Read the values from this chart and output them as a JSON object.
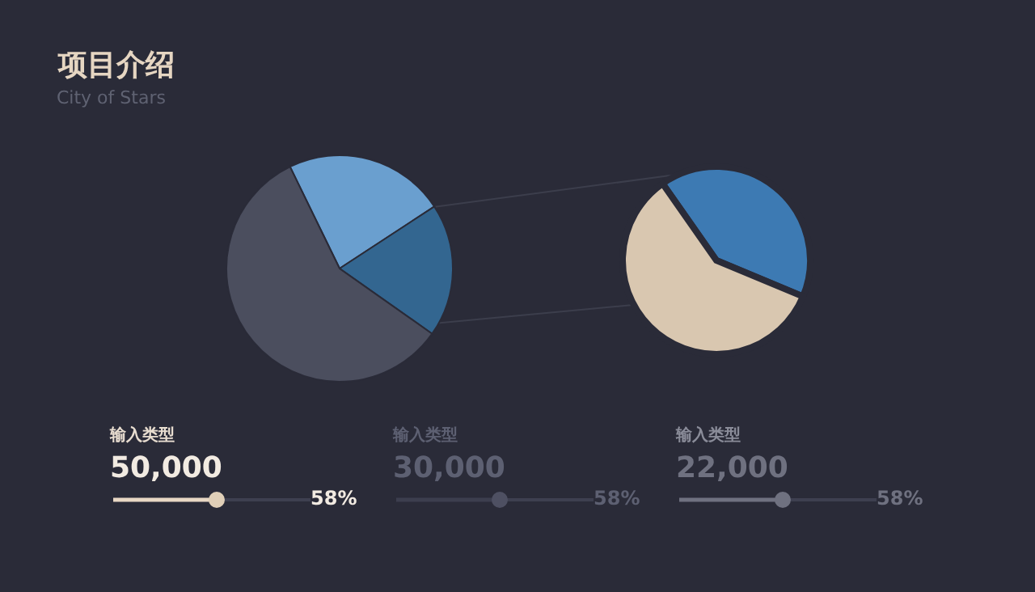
{
  "chart_data": [
    {
      "type": "pie",
      "title": "项目介绍",
      "subtitle": "City of Stars",
      "categories": [
        null,
        null,
        null
      ],
      "values": [
        23,
        19,
        58
      ],
      "colors": [
        "#6a9fcf",
        "#336690",
        "#4b4e5e"
      ]
    },
    {
      "type": "pie",
      "categories": [
        null,
        null
      ],
      "values": [
        41,
        59
      ],
      "colors": [
        "#3d7ab3",
        "#d9c7b0"
      ]
    },
    {
      "type": "other",
      "annotations": [
        "输入类型",
        "50,000",
        "58%",
        "输入类型",
        "30,000",
        "58%",
        "输入类型",
        "22,000",
        "58%"
      ]
    }
  ]
}
